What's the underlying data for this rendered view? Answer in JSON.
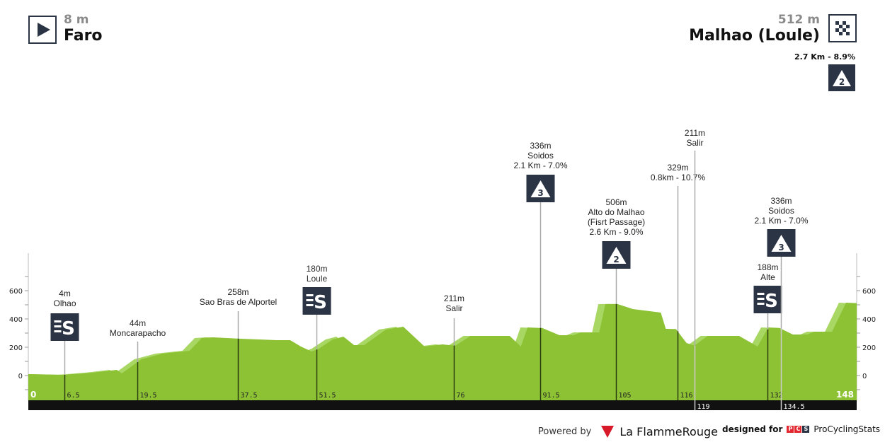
{
  "start": {
    "altitude": "8 m",
    "city": "Faro",
    "icon": "play-icon"
  },
  "finish": {
    "altitude": "512 m",
    "city": "Malhao (Loule)",
    "icon": "checkered-flag-icon",
    "climb": "2.7 Km - 8.9%",
    "climb_category": "2"
  },
  "footer": {
    "powered_by": "Powered by",
    "flamme_rouge": "La FlammeRouge",
    "designed_for": "designed for",
    "pcs_letters": [
      "P",
      "C",
      "S"
    ],
    "pcs_name": "ProCyclingStats"
  },
  "colors": {
    "profile": "#8cc234",
    "profile_light": "#a9d764",
    "marker_box": "#2b3445",
    "bar": "#111111",
    "flamme_red": "#d7192a",
    "pcs_red": "#e3262f",
    "pcs_dark": "#2b3445"
  },
  "chart_data": {
    "type": "area",
    "title": "",
    "xlabel": "",
    "ylabel": "",
    "xlim": [
      0,
      148
    ],
    "ylim": [
      -170,
      860
    ],
    "yticks": [
      0,
      200,
      400,
      600
    ],
    "grid": false,
    "profile": {
      "x": [
        0,
        6.5,
        11.4,
        15.8,
        16.7,
        20.2,
        24,
        28.8,
        31,
        33,
        38,
        44.3,
        46.8,
        48.7,
        50.6,
        51.9,
        54.4,
        56.3,
        58.2,
        60,
        63.9,
        67,
        70.8,
        74,
        76.3,
        79,
        86,
        88,
        89.2,
        91.8,
        94.9,
        97.4,
        98.7,
        102,
        103.1,
        105.2,
        108,
        113,
        113.9,
        115.7,
        117.6,
        119,
        121.4,
        127,
        130.3,
        132.2,
        134.2,
        136.6,
        139.2,
        140.4,
        143.6,
        146.1,
        148
      ],
      "y": [
        10,
        5,
        20,
        40,
        15,
        115,
        155,
        175,
        265,
        270,
        260,
        250,
        250,
        205,
        170,
        190,
        255,
        275,
        215,
        215,
        325,
        345,
        205,
        220,
        211,
        280,
        280,
        205,
        340,
        336,
        285,
        285,
        305,
        305,
        505,
        506,
        470,
        445,
        330,
        329,
        230,
        211,
        280,
        280,
        205,
        340,
        336,
        290,
        290,
        310,
        310,
        515,
        512
      ]
    },
    "km_labels": [
      {
        "km": 0,
        "label": "0"
      },
      {
        "km": 148,
        "label": "148"
      }
    ],
    "markers": [
      {
        "km": 6.5,
        "km_label": "6.5",
        "lines": [
          "4m",
          "Olhao"
        ],
        "type": "sprint"
      },
      {
        "km": 19.5,
        "km_label": "19.5",
        "lines": [
          "44m",
          "Moncarapacho"
        ],
        "type": "none"
      },
      {
        "km": 37.5,
        "km_label": "37.5",
        "lines": [
          "258m",
          "Sao Bras de Alportel"
        ],
        "type": "none"
      },
      {
        "km": 51.5,
        "km_label": "51.5",
        "lines": [
          "180m",
          "Loule"
        ],
        "type": "sprint"
      },
      {
        "km": 76,
        "km_label": "76",
        "lines": [
          "211m",
          "Salir"
        ],
        "type": "none"
      },
      {
        "km": 91.5,
        "km_label": "91.5",
        "lines": [
          "336m",
          "Soidos",
          "2.1 Km - 7.0%"
        ],
        "type": "climb",
        "category": "3"
      },
      {
        "km": 105,
        "km_label": "105",
        "lines": [
          "506m",
          "Alto do Malhao",
          "(Fisrt Passage)",
          "2.6 Km - 9.0%"
        ],
        "type": "climb",
        "category": "2"
      },
      {
        "km": 116,
        "km_label": "116",
        "lines": [
          "329m",
          "0.8km - 10.7%"
        ],
        "type": "none"
      },
      {
        "km": 119,
        "km_label": "119",
        "lines": [
          "211m",
          "Salir"
        ],
        "type": "none",
        "label_in_bar": true
      },
      {
        "km": 132,
        "km_label": "132",
        "lines": [
          "188m",
          "Alte"
        ],
        "type": "sprint"
      },
      {
        "km": 134.5,
        "km_label": "134.5",
        "lines": [
          "336m",
          "Soidos",
          "2.1 Km - 7.0%"
        ],
        "type": "climb",
        "category": "3",
        "label_in_bar": true
      }
    ]
  }
}
